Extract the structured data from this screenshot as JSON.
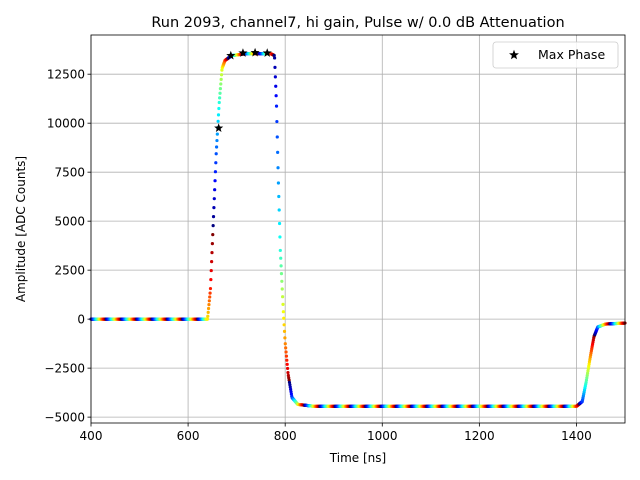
{
  "chart_data": {
    "type": "scatter",
    "title": "Run 2093, channel7, hi gain, Pulse w/ 0.0 dB Attenuation",
    "xlabel": "Time [ns]",
    "ylabel": "Amplitude [ADC Counts]",
    "xlim": [
      400,
      1500
    ],
    "ylim": [
      -5300,
      14500
    ],
    "xticks": [
      400,
      600,
      800,
      1000,
      1200,
      1400
    ],
    "xtick_labels": [
      "400",
      "600",
      "800",
      "1000",
      "1200",
      "1400"
    ],
    "yticks": [
      -5000,
      -2500,
      0,
      2500,
      5000,
      7500,
      10000,
      12500
    ],
    "ytick_labels": [
      "−5000",
      "−2500",
      "0",
      "2500",
      "5000",
      "7500",
      "10000",
      "12500"
    ],
    "grid": true,
    "colormap": "jet",
    "legend": {
      "placement": "top-right",
      "entries": [
        "Max Phase"
      ]
    },
    "pulse_series": {
      "description_points": [
        [
          400,
          0
        ],
        [
          640,
          0
        ],
        [
          646,
          1500
        ],
        [
          652,
          5000
        ],
        [
          658,
          8500
        ],
        [
          664,
          11000
        ],
        [
          670,
          12800
        ],
        [
          676,
          13200
        ],
        [
          690,
          13450
        ],
        [
          720,
          13550
        ],
        [
          770,
          13550
        ],
        [
          778,
          13450
        ],
        [
          782,
          11000
        ],
        [
          786,
          7000
        ],
        [
          790,
          3500
        ],
        [
          796,
          500
        ],
        [
          800,
          -1200
        ],
        [
          806,
          -2800
        ],
        [
          814,
          -4000
        ],
        [
          826,
          -4350
        ],
        [
          860,
          -4450
        ],
        [
          1400,
          -4450
        ],
        [
          1412,
          -4200
        ],
        [
          1420,
          -3200
        ],
        [
          1428,
          -2000
        ],
        [
          1436,
          -900
        ],
        [
          1444,
          -400
        ],
        [
          1460,
          -250
        ],
        [
          1500,
          -200
        ]
      ]
    },
    "max_phase_points": [
      {
        "x": 663,
        "y": 9750
      },
      {
        "x": 688,
        "y": 13450
      },
      {
        "x": 713,
        "y": 13580
      },
      {
        "x": 738,
        "y": 13600
      },
      {
        "x": 763,
        "y": 13580
      }
    ],
    "marker_color": "#000000"
  }
}
